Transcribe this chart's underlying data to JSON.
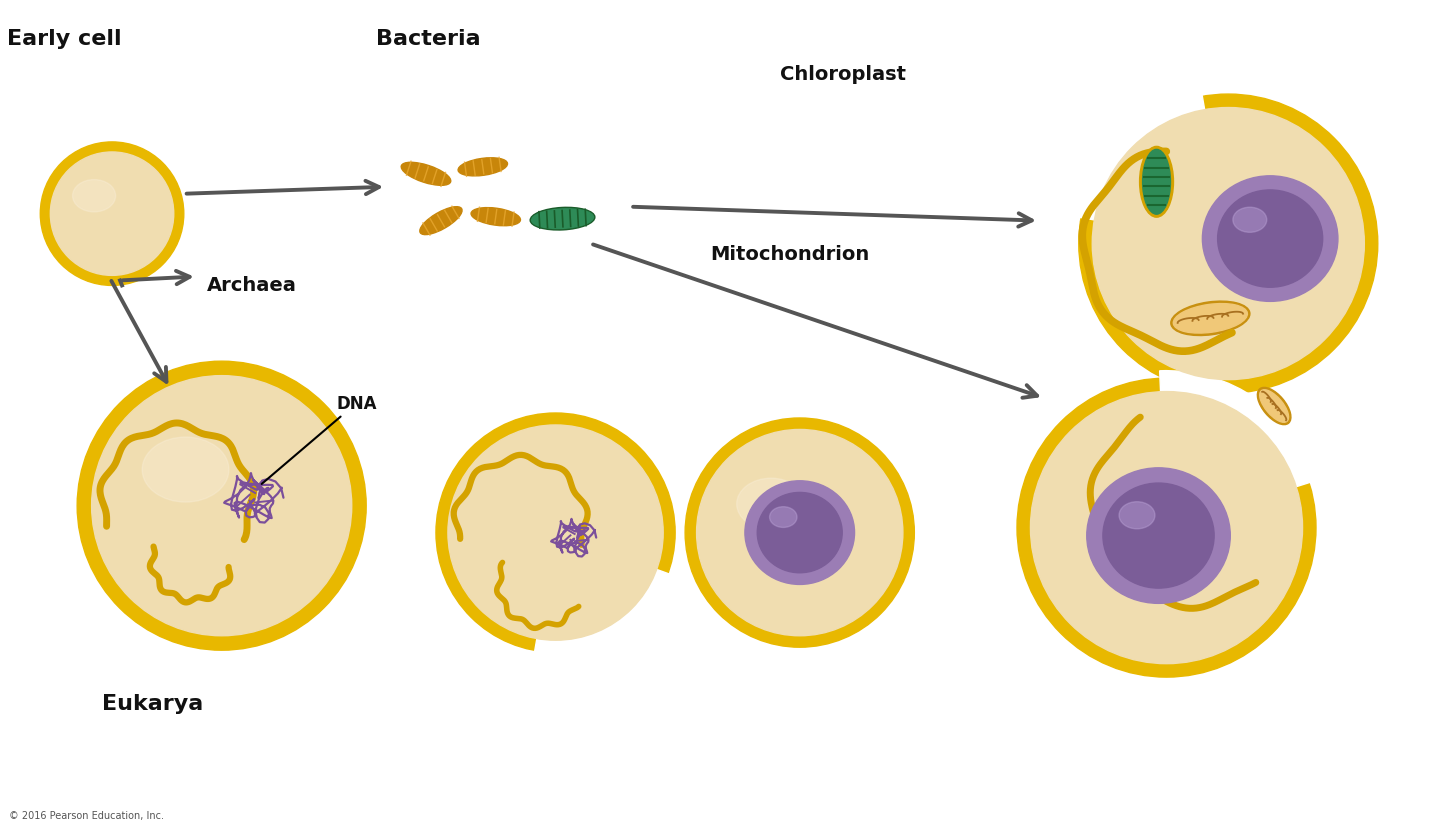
{
  "bg_color": "#ffffff",
  "cell_outer_color": "#E8B800",
  "cell_inner_color": "#F0DDB0",
  "cell_inner_lighter": "#F8EDD8",
  "nucleus_color": "#9B7DB5",
  "nucleus_inner": "#7B5D98",
  "membrane_color": "#D4A200",
  "bacteria_color": "#C8860A",
  "bacteria_green_outer": "#2E8B57",
  "bacteria_green_inner": "#1a5c2a",
  "arrow_color": "#555555",
  "text_color": "#111111",
  "label_early_cell": "Early cell",
  "label_bacteria": "Bacteria",
  "label_archaea": "Archaea",
  "label_chloroplast": "Chloroplast",
  "label_mitochondrion": "Mitochondrion",
  "label_dna": "DNA",
  "label_eukarya": "Eukarya",
  "label_copyright": "© 2016 Pearson Education, Inc.",
  "dna_color": "#7B4F9B",
  "mito_inner_color": "#C8A050",
  "mito_outer_color": "#D4A800"
}
